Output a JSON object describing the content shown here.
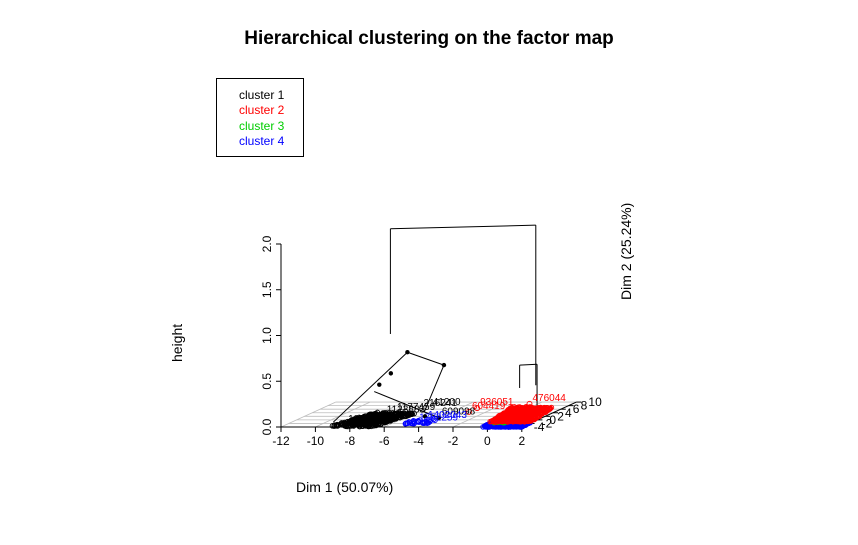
{
  "chart_data": {
    "type": "scatter",
    "title": "Hierarchical clustering on the factor map",
    "xlabel": "Dim 1 (50.07%)",
    "ylabel": "Dim 2 (25.24%)",
    "zlabel": "height",
    "xlim": [
      -12,
      2
    ],
    "ylim": [
      -4,
      10
    ],
    "zlim": [
      0,
      2
    ],
    "x_ticks": [
      "-12",
      "-10",
      "-8",
      "-6",
      "-4",
      "-2",
      "0",
      "2"
    ],
    "y_ticks": [
      "-4",
      "-2",
      "0",
      "2",
      "4",
      "6",
      "8",
      "10"
    ],
    "z_ticks": [
      "0.0",
      "0.5",
      "1.0",
      "1.5",
      "2.0"
    ],
    "grid": true,
    "legend_position": "top-left",
    "series": [
      {
        "name": "cluster 1",
        "color": "#000000"
      },
      {
        "name": "cluster 2",
        "color": "#ff0000"
      },
      {
        "name": "cluster 3",
        "color": "#00cd00"
      },
      {
        "name": "cluster 4",
        "color": "#0000ff"
      }
    ],
    "point_labels": [
      {
        "text": "476044",
        "cluster": "cluster 2",
        "x": -0.5,
        "y": 9.0,
        "z": 0.0
      },
      {
        "text": "936051",
        "cluster": "cluster 2",
        "x": -3.0,
        "y": 6.6,
        "z": 0.0
      },
      {
        "text": "604419",
        "cluster": "cluster 2",
        "x": -3.0,
        "y": 4.5,
        "z": 0.0
      },
      {
        "text": "609098",
        "cluster": "cluster 1",
        "x": -4.0,
        "y": 1.2,
        "z": 0.0
      },
      {
        "text": "1177459",
        "cluster": "cluster 1",
        "x": -7.2,
        "y": 3.8,
        "z": 0.0
      },
      {
        "text": "1123883",
        "cluster": "cluster 1",
        "x": -7.5,
        "y": 2.5,
        "z": 0.0
      },
      {
        "text": "216241",
        "cluster": "cluster 1",
        "x": -6.2,
        "y": 6.2,
        "z": 0.0
      },
      {
        "text": "41200",
        "cluster": "cluster 1",
        "x": -5.8,
        "y": 6.8,
        "z": 0.0
      },
      {
        "text": "1307782",
        "cluster": "cluster 1",
        "x": -8.5,
        "y": -3.0,
        "z": 0.0
      },
      {
        "text": "1752259",
        "cluster": "cluster 4",
        "x": -4.6,
        "y": -2.0,
        "z": 0.0
      },
      {
        "text": "1402043",
        "cluster": "cluster 4",
        "x": -4.4,
        "y": -0.6,
        "z": 0.0
      }
    ]
  }
}
